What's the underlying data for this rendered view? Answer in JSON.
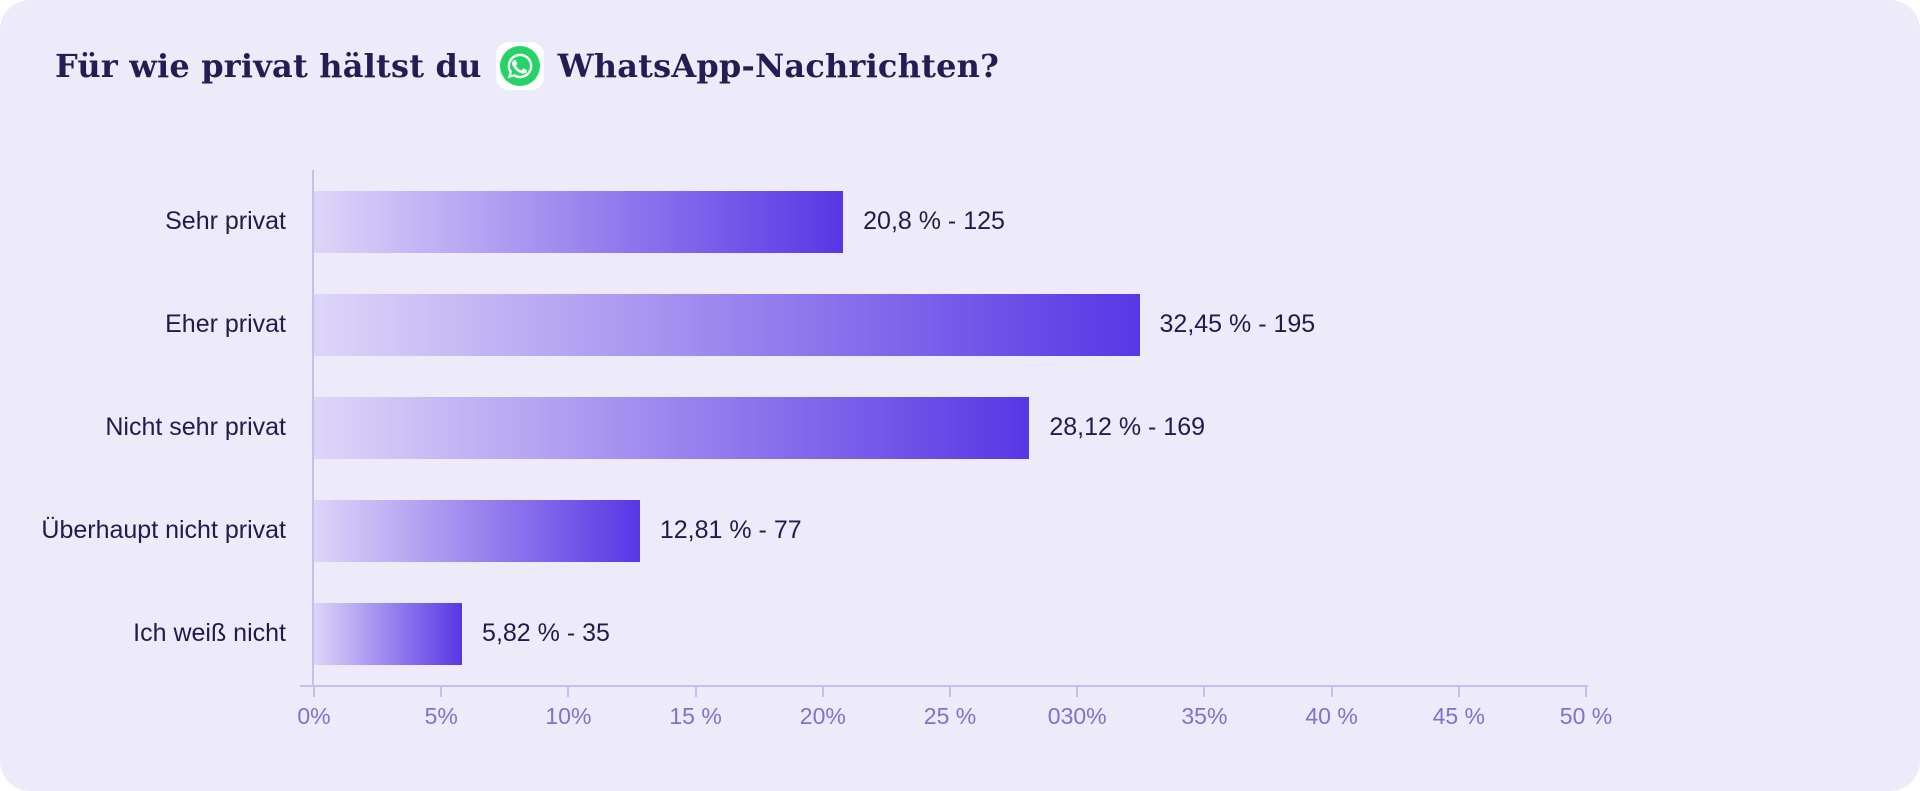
{
  "title": {
    "prefix": "Für wie privat hältst du",
    "suffix": "WhatsApp-Nachrichten?"
  },
  "icons": {
    "whatsapp": "whatsapp-icon"
  },
  "colors": {
    "card_background": "#edebf9",
    "title_text": "#241c52",
    "label_text": "#221a4f",
    "axis_line": "#c8bdf0",
    "tick_label_text": "#8071cf",
    "bar_gradient_start": "#ded5f8",
    "bar_gradient_end": "#5737e5",
    "whatsapp_green": "#25D366"
  },
  "chart_data": {
    "type": "bar",
    "orientation": "horizontal",
    "title": "Für wie privat hältst du WhatsApp-Nachrichten?",
    "categories": [
      "Sehr privat",
      "Eher privat",
      "Nicht sehr privat",
      "Überhaupt nicht privat",
      "Ich weiß nicht"
    ],
    "values": [
      20.8,
      32.45,
      28.12,
      12.81,
      5.82
    ],
    "counts": [
      125,
      195,
      169,
      77,
      35
    ],
    "value_labels": [
      "20,8 % - 125",
      "32,45 % - 195",
      "28,12 % - 169",
      "12,81 % - 77",
      "5,82 % - 35"
    ],
    "xlabel": "",
    "ylabel": "",
    "xlim": [
      0,
      50
    ],
    "x_tick_labels": [
      "0%",
      "5%",
      "10%",
      "15 %",
      "20%",
      "25 %",
      "030%",
      "35%",
      "40 %",
      "45 %",
      "50 %"
    ],
    "grid": false,
    "legend": false
  }
}
